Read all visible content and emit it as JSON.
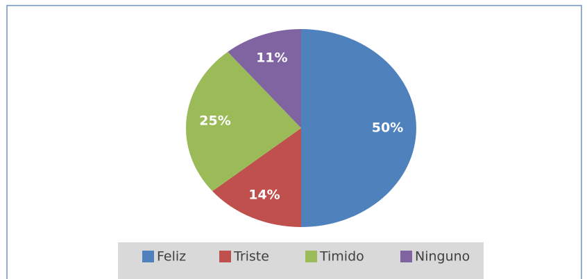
{
  "chart_data": {
    "type": "pie",
    "categories": [
      "Feliz",
      "Triste",
      "Timido",
      "Ninguno"
    ],
    "values": [
      50,
      14,
      25,
      11
    ],
    "value_labels": [
      "50%",
      "14%",
      "25%",
      "11%"
    ],
    "colors": [
      "#4f81bd",
      "#c0504d",
      "#9bbb59",
      "#8064a2"
    ],
    "legend": "bottom"
  }
}
